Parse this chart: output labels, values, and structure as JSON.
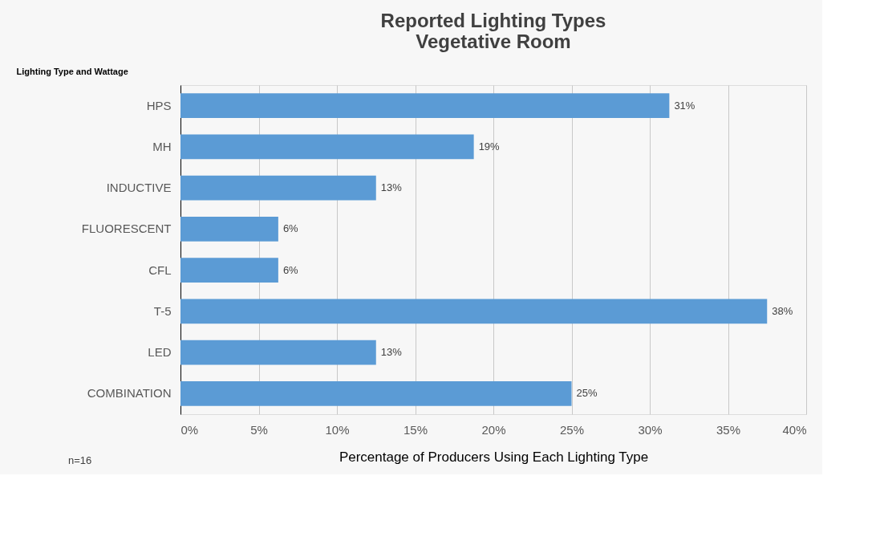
{
  "chart_data": {
    "type": "bar",
    "orientation": "horizontal",
    "title": "Reported Lighting Types\nVegetative Room",
    "ylabel": "Lighting Type and Wattage",
    "xlabel": "Percentage of Producers Using Each Lighting Type",
    "categories": [
      "HPS",
      "MH",
      "INDUCTIVE",
      "FLUORESCENT",
      "CFL",
      "T-5",
      "LED",
      "COMBINATION"
    ],
    "values": [
      31.25,
      18.75,
      12.5,
      6.25,
      6.25,
      37.5,
      12.5,
      25
    ],
    "value_labels": [
      "31%",
      "19%",
      "13%",
      "6%",
      "6%",
      "38%",
      "13%",
      "25%"
    ],
    "color": "#5b9bd5",
    "xlim": [
      0,
      40
    ],
    "xticks": [
      {
        "value": 0,
        "label": "0%"
      },
      {
        "value": 5,
        "label": "5%"
      },
      {
        "value": 10,
        "label": "10%"
      },
      {
        "value": 15,
        "label": "15%"
      },
      {
        "value": 20,
        "label": "20%"
      },
      {
        "value": 25,
        "label": "25%"
      },
      {
        "value": 30,
        "label": "30%"
      },
      {
        "value": 35,
        "label": "35%"
      },
      {
        "value": 40,
        "label": "40%"
      }
    ],
    "grid": "x",
    "annotations": [
      "n=16"
    ]
  }
}
